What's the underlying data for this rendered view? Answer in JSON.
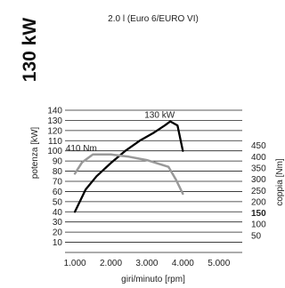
{
  "chart_data": {
    "type": "line",
    "title": "2.0 l (Euro 6/EURO VI)",
    "power_badge": "130 kW",
    "xlabel": "giri/minuto [rpm]",
    "ylabel_left": "potenza [kW]",
    "ylabel_right": "coppia [Nm]",
    "x_ticks": [
      1000,
      2000,
      3000,
      4000,
      5000
    ],
    "x_tick_labels": [
      "1.000",
      "2.000",
      "3.000",
      "4.000",
      "5.000"
    ],
    "x_range": [
      700,
      5600
    ],
    "y_left_ticks": [
      10,
      20,
      30,
      40,
      50,
      60,
      70,
      80,
      90,
      100,
      110,
      120,
      130,
      140
    ],
    "y_left_range": [
      0,
      140
    ],
    "y_right_ticks": [
      50,
      100,
      150,
      200,
      250,
      300,
      350,
      400,
      450
    ],
    "y_right_bold_tick": 150,
    "y_right_range": [
      0,
      475
    ],
    "annotations": [
      {
        "text": "130 kW",
        "series": "power"
      },
      {
        "text": "410 Nm",
        "series": "torque"
      }
    ],
    "series": [
      {
        "key": "power",
        "axis": "left",
        "color": "#000000",
        "x": [
          1000,
          1300,
          1600,
          2000,
          2400,
          2800,
          3200,
          3500,
          3650,
          3850,
          4000
        ],
        "y": [
          40,
          62,
          75,
          88,
          100,
          110,
          118,
          125,
          129,
          125,
          100
        ]
      },
      {
        "key": "torque",
        "axis": "right",
        "color": "#999999",
        "x": [
          1000,
          1200,
          1500,
          2000,
          2500,
          3000,
          3300,
          3600,
          3800,
          4000
        ],
        "y": [
          325,
          375,
          410,
          410,
          400,
          385,
          370,
          355,
          300,
          235
        ]
      }
    ]
  }
}
